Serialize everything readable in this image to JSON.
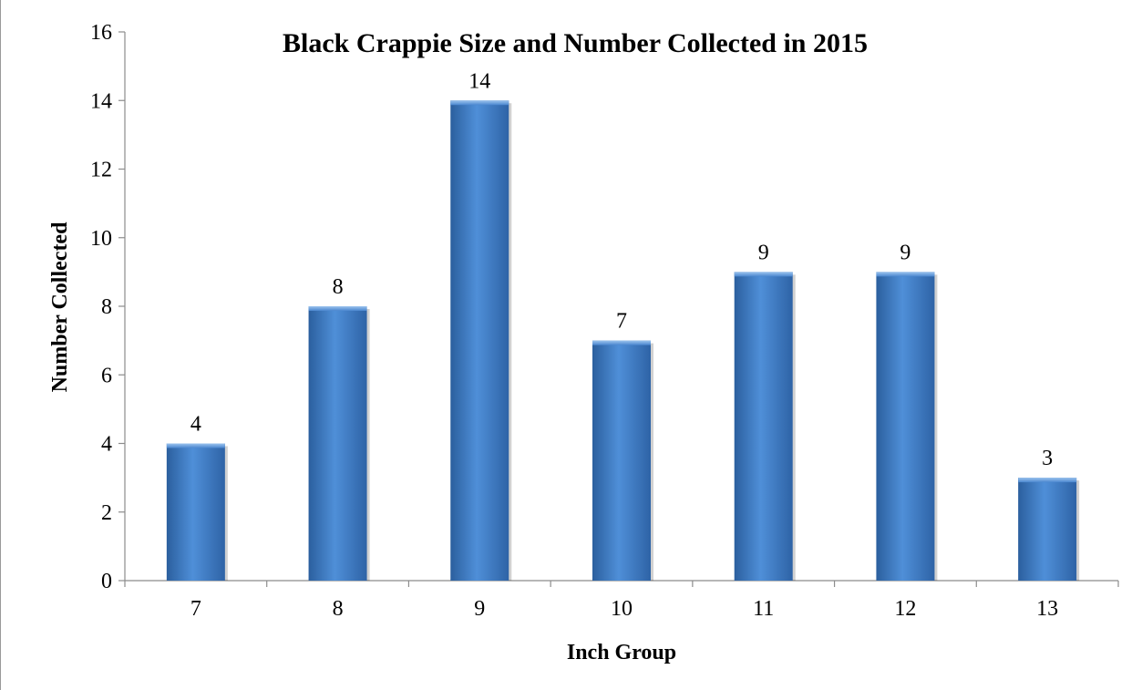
{
  "chart_data": {
    "type": "bar",
    "title": "Black Crappie Size and Number Collected in 2015",
    "xlabel": "Inch Group",
    "ylabel": "Number Collected",
    "categories": [
      "7",
      "8",
      "9",
      "10",
      "11",
      "12",
      "13"
    ],
    "values": [
      4,
      8,
      14,
      7,
      9,
      9,
      3
    ],
    "data_labels": [
      "4",
      "8",
      "14",
      "7",
      "9",
      "9",
      "3"
    ],
    "ylim": [
      0,
      16
    ],
    "yticks": [
      "0",
      "2",
      "4",
      "6",
      "8",
      "10",
      "12",
      "14",
      "16"
    ],
    "grid": false,
    "legend": "none",
    "bar_color": "#3c78c3"
  }
}
